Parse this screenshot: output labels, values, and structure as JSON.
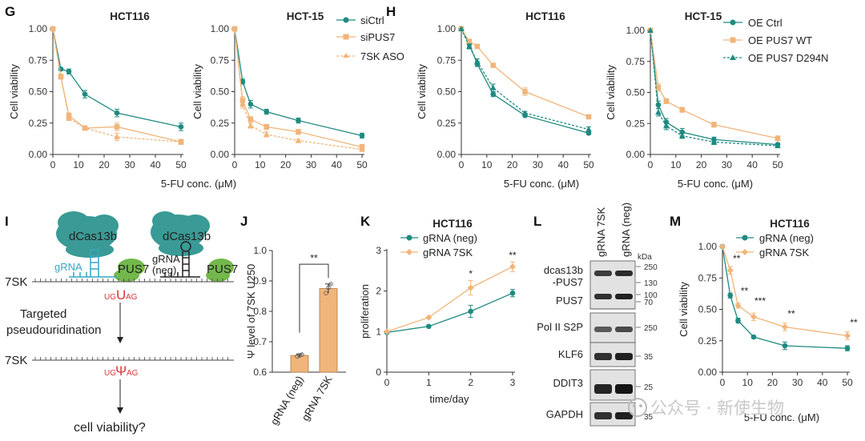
{
  "colors": {
    "teal": "#1f8a80",
    "orange": "#f0b57a",
    "orangeDark": "#e79a55",
    "red": "#d9383a",
    "cyanLab": "#36a6c6",
    "green": "#72b84a",
    "protein": "#3a9a95"
  },
  "panels": {
    "G": {
      "letter": "G",
      "xlabel": "5-FU conc. (μM)",
      "ylabel": "Cell viability",
      "legend": [
        "siCtrl",
        "siPUS7",
        "7SK ASO"
      ]
    },
    "H": {
      "letter": "H",
      "xlabel": "5-FU conc. (μM)",
      "ylabel": "Cell viability",
      "legend": [
        "OE Ctrl",
        "OE PUS7 WT",
        "OE PUS7 D294N"
      ]
    },
    "I": {
      "letter": "I",
      "protein": "dCas13b",
      "grna": "gRNA",
      "grna_neg_1": "gRNA",
      "grna_neg_2": "(neg)",
      "pus7": "PUS7",
      "rna": "7SK",
      "step1": "Targeted",
      "step2": "pseudouridination",
      "mod_before_pre": "UG",
      "mod_before_mid": "U",
      "mod_before_post": "AG",
      "mod_after_pre": "UG",
      "mod_after_mid": "Ψ",
      "mod_after_post": "AG",
      "question": "cell viability?"
    },
    "J": {
      "letter": "J",
      "ylabel": "Ψ level of 7SK U250",
      "sig": "**"
    },
    "K": {
      "letter": "K",
      "title": "HCT116",
      "xlabel": "time/day",
      "ylabel": "proliferation",
      "legend": [
        "gRNA (neg)",
        "gRNA 7SK"
      ],
      "sig": [
        "*",
        "**"
      ]
    },
    "L": {
      "letter": "L",
      "lanes": [
        "gRNA 7SK",
        "gRNA (neg)"
      ],
      "kda": "kDa",
      "blots": [
        {
          "label1": "dcas13b",
          "label2": "-PUS7",
          "markers": [
            "250",
            "130"
          ]
        },
        {
          "label1": "PUS7",
          "label2": "",
          "markers": [
            "100",
            "70"
          ]
        },
        {
          "label1": "Pol II S2P",
          "label2": "",
          "markers": [
            "250"
          ]
        },
        {
          "label1": "KLF6",
          "label2": "",
          "markers": [
            "35"
          ]
        },
        {
          "label1": "DDIT3",
          "label2": "",
          "markers": [
            "25"
          ]
        },
        {
          "label1": "GAPDH",
          "label2": "",
          "markers": [
            "35"
          ]
        }
      ]
    },
    "M": {
      "letter": "M",
      "title": "HCT116",
      "xlabel": "5-FU conc. (μM)",
      "ylabel": "Cell viability",
      "legend": [
        "gRNA (neg)",
        "gRNA 7SK"
      ],
      "sig": [
        "**",
        "**",
        "***",
        "**",
        "**"
      ]
    }
  },
  "watermark": "公众号 · 新使生物",
  "chart_data": [
    {
      "id": "G-HCT116",
      "type": "line",
      "title": "HCT116",
      "xlabel": "5-FU conc. (μM)",
      "ylabel": "Cell viability",
      "xlim": [
        0,
        50
      ],
      "ylim": [
        0,
        1
      ],
      "xticks": [
        0,
        10,
        20,
        30,
        40,
        50
      ],
      "yticks": [
        "0.00",
        "0.25",
        "0.50",
        "0.75",
        "1.00"
      ],
      "x": [
        0,
        3.125,
        6.25,
        12.5,
        25,
        50
      ],
      "series": [
        {
          "name": "siCtrl",
          "values": [
            1.0,
            0.68,
            0.66,
            0.48,
            0.33,
            0.22
          ],
          "err": [
            0,
            0.01,
            0.02,
            0.03,
            0.03,
            0.03
          ]
        },
        {
          "name": "siPUS7",
          "values": [
            1.0,
            0.62,
            0.31,
            0.21,
            0.22,
            0.1
          ],
          "err": [
            0,
            0.02,
            0.02,
            0.01,
            0.03,
            0.02
          ]
        },
        {
          "name": "7SK ASO",
          "values": [
            1.0,
            0.62,
            0.29,
            0.21,
            0.14,
            0.1
          ],
          "err": [
            0,
            0.02,
            0.02,
            0.01,
            0.03,
            0.02
          ]
        }
      ]
    },
    {
      "id": "G-HCT15",
      "type": "line",
      "title": "HCT-15",
      "xlabel": "5-FU conc. (μM)",
      "ylabel": "Cell viability",
      "xlim": [
        0,
        50
      ],
      "ylim": [
        0,
        1
      ],
      "xticks": [
        0,
        10,
        20,
        30,
        40,
        50
      ],
      "yticks": [
        "0.00",
        "0.25",
        "0.50",
        "0.75",
        "1.00"
      ],
      "x": [
        0,
        3.125,
        6.25,
        12.5,
        25,
        50
      ],
      "series": [
        {
          "name": "siCtrl",
          "values": [
            1.0,
            0.58,
            0.4,
            0.34,
            0.27,
            0.15
          ],
          "err": [
            0,
            0.02,
            0.03,
            0.02,
            0.02,
            0.02
          ]
        },
        {
          "name": "siPUS7",
          "values": [
            1.0,
            0.43,
            0.28,
            0.22,
            0.18,
            0.06
          ],
          "err": [
            0,
            0.03,
            0.02,
            0.02,
            0.02,
            0.02
          ]
        },
        {
          "name": "7SK ASO",
          "values": [
            1.0,
            0.4,
            0.23,
            0.16,
            0.11,
            0.04
          ],
          "err": [
            0,
            0.03,
            0.02,
            0.02,
            0.01,
            0.01
          ]
        }
      ]
    },
    {
      "id": "H-HCT116",
      "type": "line",
      "title": "HCT116",
      "xlabel": "5-FU conc. (μM)",
      "ylabel": "Cell viability",
      "xlim": [
        0,
        50
      ],
      "ylim": [
        0,
        1
      ],
      "xticks": [
        0,
        10,
        20,
        30,
        40,
        50
      ],
      "yticks": [
        "0.00",
        "0.25",
        "0.50",
        "0.75",
        "1.00"
      ],
      "x": [
        0,
        3.125,
        6.25,
        12.5,
        25,
        50
      ],
      "series": [
        {
          "name": "OE Ctrl",
          "values": [
            1.0,
            0.88,
            0.72,
            0.48,
            0.31,
            0.17
          ],
          "err": [
            0,
            0.02,
            0.02,
            0.02,
            0.01,
            0.01
          ]
        },
        {
          "name": "OE PUS7 WT",
          "values": [
            1.0,
            0.9,
            0.86,
            0.71,
            0.5,
            0.3
          ],
          "err": [
            0,
            0.01,
            0.01,
            0.01,
            0.03,
            0.01
          ]
        },
        {
          "name": "OE PUS7 D294N",
          "values": [
            1.0,
            0.86,
            0.74,
            0.53,
            0.33,
            0.2
          ],
          "err": [
            0,
            0.02,
            0.02,
            0.03,
            0.01,
            0.02
          ]
        }
      ]
    },
    {
      "id": "H-HCT15",
      "type": "line",
      "title": "HCT-15",
      "xlabel": "5-FU conc. (μM)",
      "ylabel": "Cell viability",
      "xlim": [
        0,
        50
      ],
      "ylim": [
        0,
        1
      ],
      "xticks": [
        0,
        10,
        20,
        30,
        40,
        50
      ],
      "yticks": [
        "0.00",
        "0.25",
        "0.50",
        "0.75",
        "1.00"
      ],
      "x": [
        0,
        3.125,
        6.25,
        12.5,
        25,
        50
      ],
      "series": [
        {
          "name": "OE Ctrl",
          "values": [
            1.0,
            0.4,
            0.26,
            0.18,
            0.12,
            0.08
          ],
          "err": [
            0,
            0.03,
            0.03,
            0.03,
            0.02,
            0.01
          ]
        },
        {
          "name": "OE PUS7 WT",
          "values": [
            1.0,
            0.54,
            0.43,
            0.36,
            0.24,
            0.13
          ],
          "err": [
            0,
            0.03,
            0.02,
            0.02,
            0.02,
            0.02
          ]
        },
        {
          "name": "OE PUS7 D294N",
          "values": [
            1.0,
            0.34,
            0.23,
            0.15,
            0.1,
            0.07
          ],
          "err": [
            0,
            0.03,
            0.03,
            0.02,
            0.02,
            0.01
          ]
        }
      ]
    },
    {
      "id": "J",
      "type": "bar",
      "ylabel": "Ψ level of 7SK U250",
      "categories": [
        "gRNA  (neg)",
        "gRNA 7SK"
      ],
      "values": [
        0.655,
        0.875
      ],
      "err": [
        0.005,
        0.015
      ],
      "ylim": [
        0.6,
        1.0
      ],
      "yticks": [
        "0.6",
        "0.7",
        "0.8",
        "0.9",
        "1.0"
      ],
      "points": [
        [
          0.652,
          0.655,
          0.658
        ],
        [
          0.86,
          0.878,
          0.89
        ]
      ]
    },
    {
      "id": "K",
      "type": "line",
      "title": "HCT116",
      "xlabel": "time/day",
      "ylabel": "proliferation",
      "xlim": [
        0,
        3
      ],
      "ylim": [
        0,
        3
      ],
      "xticks": [
        0,
        1,
        2,
        3
      ],
      "yticks": [
        "0",
        "1",
        "2",
        "3"
      ],
      "x": [
        0,
        1,
        2,
        3
      ],
      "series": [
        {
          "name": "gRNA (neg)",
          "values": [
            0.98,
            1.13,
            1.5,
            1.95
          ],
          "err": [
            0.02,
            0.02,
            0.15,
            0.09
          ]
        },
        {
          "name": "gRNA 7SK",
          "values": [
            1.0,
            1.35,
            2.08,
            2.6
          ],
          "err": [
            0.02,
            0.02,
            0.18,
            0.12
          ]
        }
      ]
    },
    {
      "id": "M",
      "type": "line",
      "title": "HCT116",
      "xlabel": "5-FU conc. (μM)",
      "ylabel": "Cell viability",
      "xlim": [
        0,
        50
      ],
      "ylim": [
        0,
        1
      ],
      "xticks": [
        0,
        10,
        20,
        30,
        40,
        50
      ],
      "yticks": [
        "0.00",
        "0.25",
        "0.50",
        "0.75",
        "1.00"
      ],
      "x": [
        0,
        3.125,
        6.25,
        12.5,
        25,
        50
      ],
      "series": [
        {
          "name": "gRNA (neg)",
          "values": [
            1.0,
            0.61,
            0.41,
            0.28,
            0.21,
            0.19
          ],
          "err": [
            0,
            0.02,
            0.02,
            0.01,
            0.03,
            0.02
          ]
        },
        {
          "name": "gRNA 7SK",
          "values": [
            1.0,
            0.81,
            0.53,
            0.44,
            0.36,
            0.29
          ],
          "err": [
            0,
            0.03,
            0.02,
            0.03,
            0.03,
            0.03
          ]
        }
      ]
    }
  ]
}
